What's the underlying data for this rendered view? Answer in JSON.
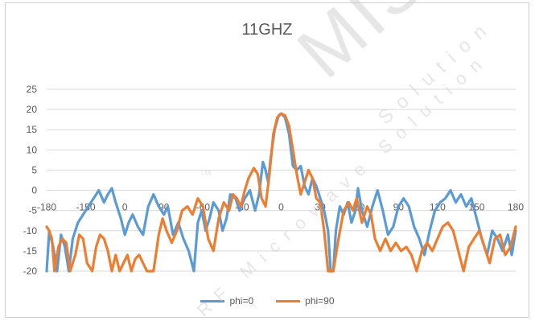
{
  "chart_data": {
    "type": "line",
    "title": "11GHZ",
    "xlabel": "",
    "ylabel": "",
    "xlim": [
      -180,
      180
    ],
    "ylim": [
      -20,
      25
    ],
    "x_ticks": [
      "-180",
      "-150",
      "0",
      "90",
      "-60",
      "-30",
      "0",
      "30",
      "60",
      "90",
      "120",
      "150",
      "180"
    ],
    "y_ticks": [
      "25",
      "20",
      "15",
      "10",
      "5",
      "0",
      "-5",
      "-10",
      "-15",
      "-20"
    ],
    "grid": "horizontal",
    "legend_position": "bottom",
    "series": [
      {
        "name": "phi=0",
        "color": "#5B9BD5",
        "points": [
          [
            -180,
            -20
          ],
          [
            -178,
            -10
          ],
          [
            -175,
            -14
          ],
          [
            -172,
            -20
          ],
          [
            -169,
            -11
          ],
          [
            -166,
            -14
          ],
          [
            -163,
            -20
          ],
          [
            -160,
            -12
          ],
          [
            -156,
            -8
          ],
          [
            -152,
            -6
          ],
          [
            -148,
            -4
          ],
          [
            -144,
            -2
          ],
          [
            -140,
            0
          ],
          [
            -136,
            -3
          ],
          [
            -133,
            -1
          ],
          [
            -130,
            0.5
          ],
          [
            -127,
            -3
          ],
          [
            -123,
            -7
          ],
          [
            -120,
            -11
          ],
          [
            -117,
            -8
          ],
          [
            -114,
            -6
          ],
          [
            -110,
            -9
          ],
          [
            -106,
            -11
          ],
          [
            -102,
            -4
          ],
          [
            -98,
            -1
          ],
          [
            -94,
            -4
          ],
          [
            -90,
            -6
          ],
          [
            -87,
            -4
          ],
          [
            -83,
            -11
          ],
          [
            -79,
            -8
          ],
          [
            -75,
            -12
          ],
          [
            -71,
            -15
          ],
          [
            -67,
            -20
          ],
          [
            -64,
            -8
          ],
          [
            -61,
            -5
          ],
          [
            -58,
            -10
          ],
          [
            -55,
            -7
          ],
          [
            -52,
            -3
          ],
          [
            -48,
            -5
          ],
          [
            -45,
            -10
          ],
          [
            -42,
            -7
          ],
          [
            -39,
            -1
          ],
          [
            -35,
            -2
          ],
          [
            -32,
            -5
          ],
          [
            -28,
            -2
          ],
          [
            -24,
            0
          ],
          [
            -20,
            -5
          ],
          [
            -17,
            -1
          ],
          [
            -14,
            7
          ],
          [
            -12,
            5
          ],
          [
            -10,
            2
          ],
          [
            -8,
            8
          ],
          [
            -5,
            15
          ],
          [
            -2,
            18.5
          ],
          [
            0,
            19
          ],
          [
            3,
            18
          ],
          [
            6,
            14
          ],
          [
            9,
            6
          ],
          [
            12,
            5
          ],
          [
            15,
            6
          ],
          [
            18,
            1
          ],
          [
            21,
            -1
          ],
          [
            24,
            3
          ],
          [
            27,
            1
          ],
          [
            30,
            -2
          ],
          [
            33,
            -5
          ],
          [
            36,
            -10
          ],
          [
            38,
            -20
          ],
          [
            40,
            -20
          ],
          [
            42,
            -10
          ],
          [
            45,
            -4
          ],
          [
            48,
            -6
          ],
          [
            51,
            -3
          ],
          [
            54,
            -8
          ],
          [
            57,
            -5
          ],
          [
            59,
            0.5
          ],
          [
            62,
            -5
          ],
          [
            66,
            -9
          ],
          [
            70,
            -4
          ],
          [
            74,
            0
          ],
          [
            78,
            -5
          ],
          [
            82,
            -11
          ],
          [
            86,
            -9
          ],
          [
            90,
            -4
          ],
          [
            94,
            -2
          ],
          [
            98,
            -4
          ],
          [
            102,
            -9
          ],
          [
            106,
            -12
          ],
          [
            110,
            -16
          ],
          [
            114,
            -10
          ],
          [
            118,
            -5
          ],
          [
            122,
            -3
          ],
          [
            126,
            -2
          ],
          [
            130,
            0
          ],
          [
            134,
            -3
          ],
          [
            138,
            -1
          ],
          [
            142,
            -4
          ],
          [
            146,
            -2
          ],
          [
            150,
            -7
          ],
          [
            154,
            -12
          ],
          [
            158,
            -16
          ],
          [
            162,
            -10
          ],
          [
            166,
            -12
          ],
          [
            170,
            -15
          ],
          [
            174,
            -11
          ],
          [
            177,
            -16
          ],
          [
            180,
            -10
          ]
        ]
      },
      {
        "name": "phi=90",
        "color": "#ED7D31",
        "points": [
          [
            -180,
            -9
          ],
          [
            -178,
            -10
          ],
          [
            -176,
            -12
          ],
          [
            -174,
            -20
          ],
          [
            -171,
            -14
          ],
          [
            -168,
            -12
          ],
          [
            -165,
            -13
          ],
          [
            -162,
            -20
          ],
          [
            -158,
            -16
          ],
          [
            -155,
            -11
          ],
          [
            -152,
            -12
          ],
          [
            -149,
            -18
          ],
          [
            -145,
            -20
          ],
          [
            -142,
            -14
          ],
          [
            -139,
            -11
          ],
          [
            -136,
            -12
          ],
          [
            -133,
            -15
          ],
          [
            -130,
            -20
          ],
          [
            -127,
            -16
          ],
          [
            -124,
            -20
          ],
          [
            -121,
            -18
          ],
          [
            -118,
            -16
          ],
          [
            -115,
            -20
          ],
          [
            -112,
            -17
          ],
          [
            -109,
            -16
          ],
          [
            -106,
            -18
          ],
          [
            -103,
            -20
          ],
          [
            -98,
            -20
          ],
          [
            -94,
            -11
          ],
          [
            -91,
            -7
          ],
          [
            -88,
            -10
          ],
          [
            -84,
            -13
          ],
          [
            -80,
            -10
          ],
          [
            -76,
            -5
          ],
          [
            -72,
            -4
          ],
          [
            -68,
            -6
          ],
          [
            -64,
            -2
          ],
          [
            -60,
            -4
          ],
          [
            -56,
            -12
          ],
          [
            -52,
            -15
          ],
          [
            -48,
            -7
          ],
          [
            -44,
            -3
          ],
          [
            -40,
            -5
          ],
          [
            -37,
            -1
          ],
          [
            -34,
            -2
          ],
          [
            -31,
            -4
          ],
          [
            -28,
            0
          ],
          [
            -25,
            3
          ],
          [
            -21,
            5.5
          ],
          [
            -18,
            4
          ],
          [
            -15,
            -2
          ],
          [
            -12,
            -4
          ],
          [
            -9,
            4
          ],
          [
            -6,
            14
          ],
          [
            -3,
            18
          ],
          [
            0,
            19
          ],
          [
            3,
            18.5
          ],
          [
            6,
            16
          ],
          [
            9,
            10
          ],
          [
            12,
            4
          ],
          [
            15,
            -1
          ],
          [
            18,
            2
          ],
          [
            21,
            5
          ],
          [
            24,
            3
          ],
          [
            27,
            -2
          ],
          [
            30,
            -3
          ],
          [
            33,
            -10
          ],
          [
            36,
            -20
          ],
          [
            40,
            -20
          ],
          [
            44,
            -12
          ],
          [
            48,
            -5
          ],
          [
            52,
            -3
          ],
          [
            55,
            -5
          ],
          [
            58,
            -2
          ],
          [
            62,
            -8
          ],
          [
            66,
            -4
          ],
          [
            69,
            -6
          ],
          [
            72,
            -12
          ],
          [
            76,
            -15
          ],
          [
            80,
            -12
          ],
          [
            84,
            -15
          ],
          [
            88,
            -13
          ],
          [
            92,
            -15
          ],
          [
            96,
            -14
          ],
          [
            100,
            -16
          ],
          [
            104,
            -20
          ],
          [
            108,
            -15
          ],
          [
            112,
            -13
          ],
          [
            116,
            -15
          ],
          [
            120,
            -12
          ],
          [
            124,
            -9
          ],
          [
            128,
            -8
          ],
          [
            132,
            -10
          ],
          [
            136,
            -15
          ],
          [
            140,
            -20
          ],
          [
            144,
            -14
          ],
          [
            148,
            -12
          ],
          [
            152,
            -10
          ],
          [
            156,
            -14
          ],
          [
            160,
            -18
          ],
          [
            164,
            -12
          ],
          [
            168,
            -11
          ],
          [
            172,
            -16
          ],
          [
            176,
            -14
          ],
          [
            180,
            -9
          ]
        ]
      }
    ]
  },
  "watermark": {
    "main": "MISC",
    "sub": "Solution",
    "line": "RF Microwave Solution",
    "tm": "TM"
  }
}
